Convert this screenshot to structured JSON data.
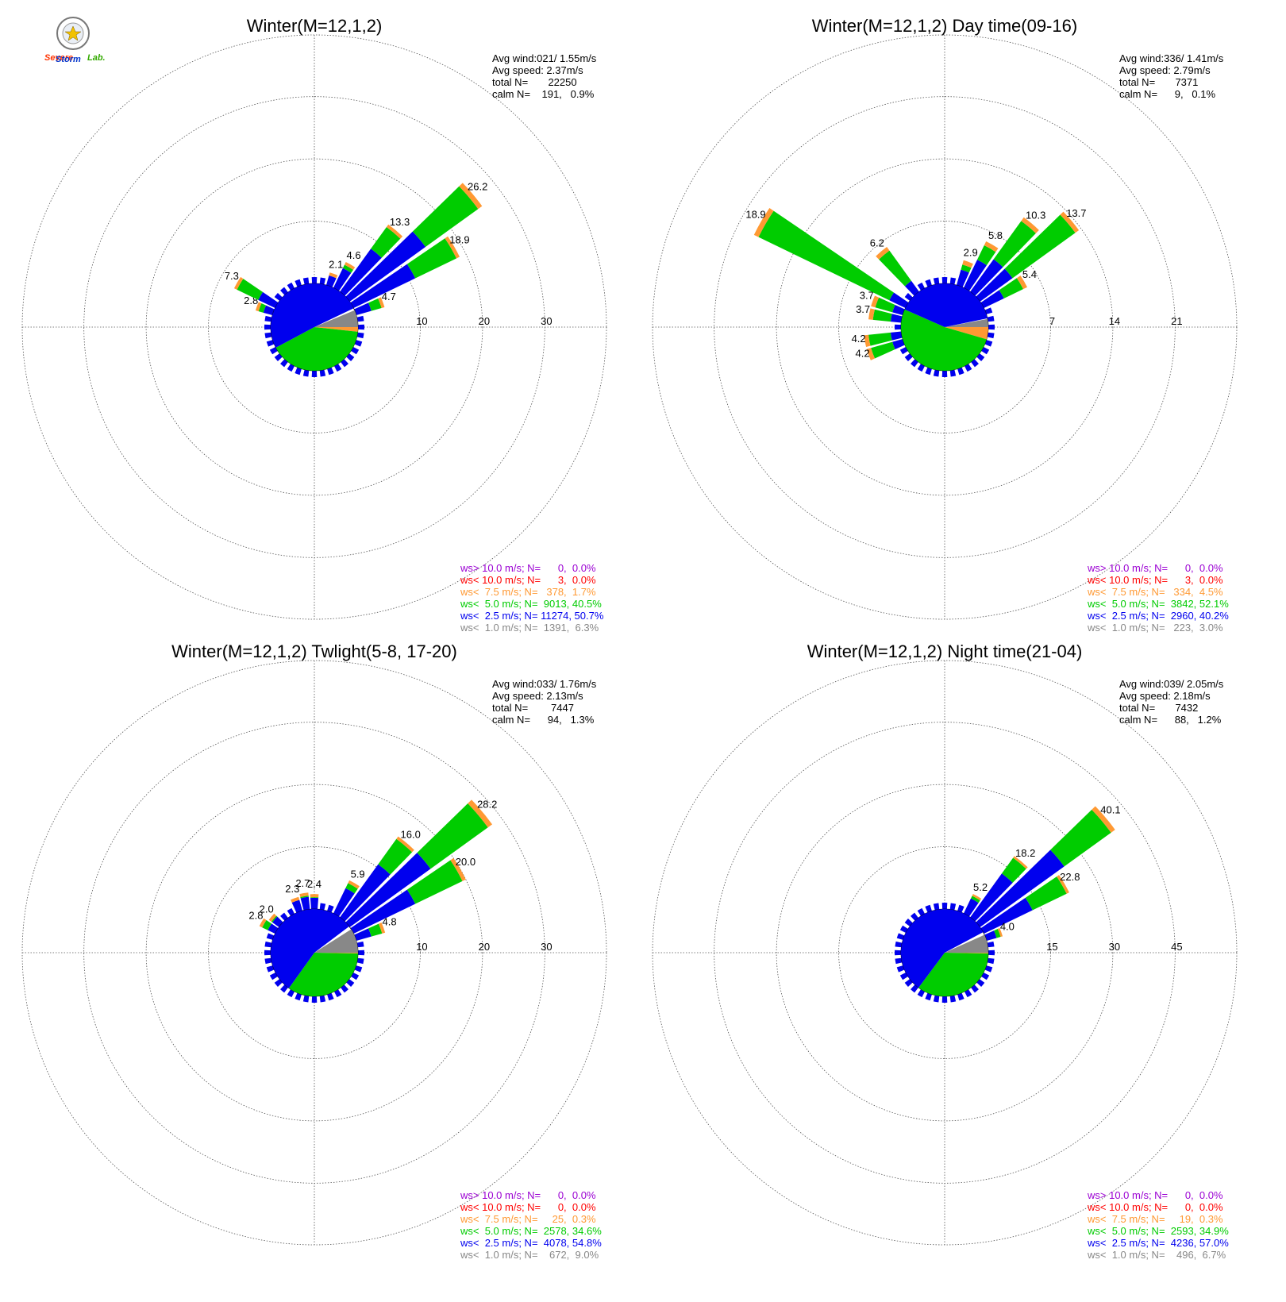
{
  "logo": {
    "text_main": "Severe",
    "text_sub": "Storm",
    "text_lab": "Lab."
  },
  "colors": {
    "ws_gt10": "#9b00d3",
    "ws_lt10": "#ff0000",
    "ws_lt7_5": "#ff9933",
    "ws_lt5": "#00cc00",
    "ws_lt2_5": "#0000ee",
    "ws_lt1": "#888888",
    "grid": "#555555"
  },
  "chart_data": [
    {
      "type": "wind-rose",
      "title": "Winter(M=12,1,2)",
      "stats": [
        "Avg wind:021/ 1.55m/s",
        "Avg speed: 2.37m/s",
        "total N=       22250",
        "calm N=    191,   0.9%"
      ],
      "rings": [
        10,
        20,
        30
      ],
      "ring_labels": [
        "10",
        "20",
        "30"
      ],
      "calm_pie": {
        "ws_lt1": 6.3,
        "ws_lt2_5": 50.7,
        "ws_lt5": 40.5,
        "ws_lt7_5": 1.7,
        "ws_lt10": 0.0
      },
      "petals": [
        {
          "dir": 20,
          "value": 2.1,
          "label": "2.1",
          "blue": 1.6
        },
        {
          "dir": 30,
          "value": 4.6,
          "label": "4.6",
          "blue": 3.5
        },
        {
          "dir": 40,
          "value": 13.3,
          "label": "13.3",
          "blue": 8.5
        },
        {
          "dir": 50,
          "value": 26.2,
          "label": "26.2",
          "blue": 15.0
        },
        {
          "dir": 60,
          "value": 18.9,
          "label": "18.9",
          "blue": 11.0
        },
        {
          "dir": 70,
          "value": 4.7,
          "label": "4.7",
          "blue": 2.5
        },
        {
          "dir": 290,
          "value": 2.8,
          "label": "2.8",
          "blue": 1.5
        },
        {
          "dir": 300,
          "value": 7.3,
          "label": "7.3",
          "blue": 3.0
        }
      ],
      "legend": [
        {
          "key": "ws_gt10",
          "text": "ws> 10.0 m/s; N=      0,  0.0%"
        },
        {
          "key": "ws_lt10",
          "text": "ws< 10.0 m/s; N=      3,  0.0%"
        },
        {
          "key": "ws_lt7_5",
          "text": "ws<  7.5 m/s; N=   378,  1.7%"
        },
        {
          "key": "ws_lt5",
          "text": "ws<  5.0 m/s; N=  9013, 40.5%"
        },
        {
          "key": "ws_lt2_5",
          "text": "ws<  2.5 m/s; N= 11274, 50.7%"
        },
        {
          "key": "ws_lt1",
          "text": "ws<  1.0 m/s; N=  1391,  6.3%"
        }
      ]
    },
    {
      "type": "wind-rose",
      "title": "Winter(M=12,1,2) Day time(09-16)",
      "stats": [
        "Avg wind:336/ 1.41m/s",
        "Avg speed: 2.79m/s",
        "total N=       7371",
        "calm N=      9,   0.1%"
      ],
      "rings": [
        7,
        14,
        21
      ],
      "ring_labels": [
        "7",
        "14",
        "21"
      ],
      "calm_pie": {
        "ws_lt1": 3.0,
        "ws_lt2_5": 40.2,
        "ws_lt5": 52.1,
        "ws_lt7_5": 4.5,
        "ws_lt10": 0.0
      },
      "petals": [
        {
          "dir": 20,
          "value": 2.9,
          "label": "2.9",
          "blue": 1.8
        },
        {
          "dir": 30,
          "value": 5.8,
          "label": "5.8",
          "blue": 3.5
        },
        {
          "dir": 40,
          "value": 10.3,
          "label": "10.3",
          "blue": 4.5
        },
        {
          "dir": 50,
          "value": 13.7,
          "label": "13.7",
          "blue": 4.5
        },
        {
          "dir": 60,
          "value": 5.4,
          "label": "5.4",
          "blue": 2.5
        },
        {
          "dir": 250,
          "value": 4.2,
          "label": "4.2",
          "blue": 1.2
        },
        {
          "dir": 260,
          "value": 4.2,
          "label": "4.2",
          "blue": 1.2
        },
        {
          "dir": 280,
          "value": 3.7,
          "label": "3.7",
          "blue": 1.2
        },
        {
          "dir": 290,
          "value": 3.7,
          "label": "3.7",
          "blue": 1.2
        },
        {
          "dir": 320,
          "value": 6.2,
          "label": "6.2",
          "blue": 1.5
        },
        {
          "dir": 300,
          "value": 18.9,
          "label": "18.9",
          "blue": 2.0
        }
      ],
      "legend": [
        {
          "key": "ws_gt10",
          "text": "ws> 10.0 m/s; N=      0,  0.0%"
        },
        {
          "key": "ws_lt10",
          "text": "ws< 10.0 m/s; N=      3,  0.0%"
        },
        {
          "key": "ws_lt7_5",
          "text": "ws<  7.5 m/s; N=   334,  4.5%"
        },
        {
          "key": "ws_lt5",
          "text": "ws<  5.0 m/s; N=  3842, 52.1%"
        },
        {
          "key": "ws_lt2_5",
          "text": "ws<  2.5 m/s; N=  2960, 40.2%"
        },
        {
          "key": "ws_lt1",
          "text": "ws<  1.0 m/s; N=   223,  3.0%"
        }
      ]
    },
    {
      "type": "wind-rose",
      "title": "Winter(M=12,1,2) Twlight(5-8, 17-20)",
      "stats": [
        "Avg wind:033/ 1.76m/s",
        "Avg speed: 2.13m/s",
        "total N=        7447",
        "calm N=      94,   1.3%"
      ],
      "rings": [
        10,
        20,
        30
      ],
      "ring_labels": [
        "10",
        "20",
        "30"
      ],
      "calm_pie": {
        "ws_lt1": 9.0,
        "ws_lt2_5": 54.8,
        "ws_lt5": 34.6,
        "ws_lt7_5": 0.3,
        "ws_lt10": 0.0
      },
      "petals": [
        {
          "dir": 0,
          "value": 2.4,
          "label": "2.4",
          "blue": 1.8
        },
        {
          "dir": 350,
          "value": 2.7,
          "label": "2.7",
          "blue": 2.0
        },
        {
          "dir": 340,
          "value": 2.3,
          "label": "2.3",
          "blue": 1.8
        },
        {
          "dir": 30,
          "value": 5.9,
          "label": "5.9",
          "blue": 4.5
        },
        {
          "dir": 40,
          "value": 16.0,
          "label": "16.0",
          "blue": 10.5
        },
        {
          "dir": 50,
          "value": 28.2,
          "label": "28.2",
          "blue": 16.0
        },
        {
          "dir": 60,
          "value": 20.0,
          "label": "20.0",
          "blue": 11.0
        },
        {
          "dir": 70,
          "value": 4.8,
          "label": "4.8",
          "blue": 2.5
        },
        {
          "dir": 310,
          "value": 2.0,
          "label": "2.0",
          "blue": 1.3
        },
        {
          "dir": 300,
          "value": 2.8,
          "label": "2.8",
          "blue": 1.3
        }
      ],
      "legend": [
        {
          "key": "ws_gt10",
          "text": "ws> 10.0 m/s; N=      0,  0.0%"
        },
        {
          "key": "ws_lt10",
          "text": "ws< 10.0 m/s; N=      0,  0.0%"
        },
        {
          "key": "ws_lt7_5",
          "text": "ws<  7.5 m/s; N=     25,  0.3%"
        },
        {
          "key": "ws_lt5",
          "text": "ws<  5.0 m/s; N=  2578, 34.6%"
        },
        {
          "key": "ws_lt2_5",
          "text": "ws<  2.5 m/s; N=  4078, 54.8%"
        },
        {
          "key": "ws_lt1",
          "text": "ws<  1.0 m/s; N=    672,  9.0%"
        }
      ]
    },
    {
      "type": "wind-rose",
      "title": "Winter(M=12,1,2) Night time(21-04)",
      "stats": [
        "Avg wind:039/ 2.05m/s",
        "Avg speed: 2.18m/s",
        "total N=       7432",
        "calm N=      88,   1.2%"
      ],
      "rings": [
        15,
        30,
        45
      ],
      "ring_labels": [
        "15",
        "30",
        "45"
      ],
      "calm_pie": {
        "ws_lt1": 6.7,
        "ws_lt2_5": 57.0,
        "ws_lt5": 34.9,
        "ws_lt7_5": 0.3,
        "ws_lt10": 0.0
      },
      "petals": [
        {
          "dir": 30,
          "value": 5.2,
          "label": "5.2",
          "blue": 4.0
        },
        {
          "dir": 40,
          "value": 18.2,
          "label": "18.2",
          "blue": 13.0
        },
        {
          "dir": 50,
          "value": 40.1,
          "label": "40.1",
          "blue": 25.0
        },
        {
          "dir": 60,
          "value": 22.8,
          "label": "22.8",
          "blue": 13.0
        },
        {
          "dir": 70,
          "value": 4.0,
          "label": "4.0",
          "blue": 2.5
        }
      ],
      "legend": [
        {
          "key": "ws_gt10",
          "text": "ws> 10.0 m/s; N=      0,  0.0%"
        },
        {
          "key": "ws_lt10",
          "text": "ws< 10.0 m/s; N=      0,  0.0%"
        },
        {
          "key": "ws_lt7_5",
          "text": "ws<  7.5 m/s; N=     19,  0.3%"
        },
        {
          "key": "ws_lt5",
          "text": "ws<  5.0 m/s; N=  2593, 34.9%"
        },
        {
          "key": "ws_lt2_5",
          "text": "ws<  2.5 m/s; N=  4236, 57.0%"
        },
        {
          "key": "ws_lt1",
          "text": "ws<  1.0 m/s; N=    496,  6.7%"
        }
      ]
    }
  ]
}
